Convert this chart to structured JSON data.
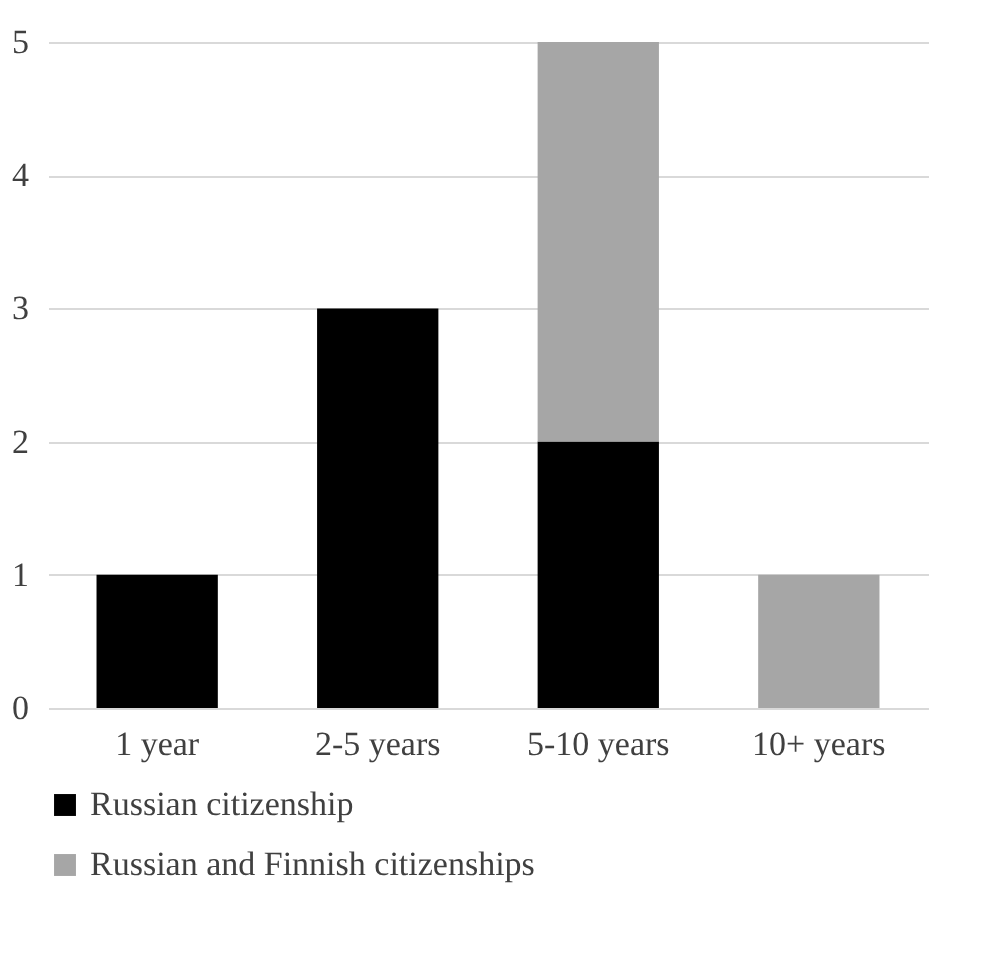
{
  "chart_data": {
    "type": "bar",
    "stacked": true,
    "categories": [
      "1 year",
      "2-5 years",
      "5-10 years",
      "10+ years"
    ],
    "series": [
      {
        "name": "Russian citizenship",
        "color": "#000000",
        "values": [
          1,
          3,
          2,
          null
        ]
      },
      {
        "name": "Russian and Finnish citizenships",
        "color": "#a6a6a6",
        "values": [
          null,
          null,
          3,
          1
        ]
      }
    ],
    "ylim": [
      0,
      5
    ],
    "yticks": [
      0,
      1,
      2,
      3,
      4,
      5
    ],
    "grid": "y",
    "legend": "bottom"
  }
}
